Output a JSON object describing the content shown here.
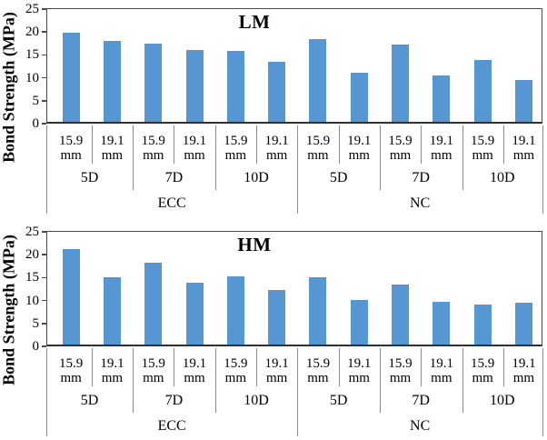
{
  "figure": {
    "background": "#ffffff",
    "colors": {
      "bar": "#5696D2",
      "axis": "#4a4a4a",
      "separator": "#8a8a8a",
      "text": "#000000"
    }
  },
  "chart_data": [
    {
      "type": "bar",
      "title": "LM",
      "ylabel": "Bond Strength (MPa)",
      "xlabel": "",
      "ylim": [
        0,
        25
      ],
      "yticks": [
        0,
        5,
        10,
        15,
        20,
        25
      ],
      "grid": false,
      "legend": null,
      "categories": {
        "bar_diameters": [
          "15.9 mm",
          "19.1 mm"
        ],
        "embedment_lengths": [
          "5D",
          "7D",
          "10D"
        ],
        "concrete_types": [
          "ECC",
          "NC"
        ]
      },
      "series": [
        {
          "name": "Bond Strength",
          "values": [
            19.9,
            18.0,
            17.5,
            16.1,
            15.9,
            13.5,
            18.5,
            11.1,
            17.3,
            10.6,
            13.8,
            9.6
          ]
        }
      ],
      "value_order_note": "ECC-5D-15.9, ECC-5D-19.1, ECC-7D-15.9, ECC-7D-19.1, ECC-10D-15.9, ECC-10D-19.1, NC-5D-15.9, NC-5D-19.1, NC-7D-15.9, NC-7D-19.1, NC-10D-15.9, NC-10D-19.1"
    },
    {
      "type": "bar",
      "title": "HM",
      "ylabel": "Bond Strength (MPa)",
      "xlabel": "",
      "ylim": [
        0,
        25
      ],
      "yticks": [
        0,
        5,
        10,
        15,
        20,
        25
      ],
      "grid": false,
      "legend": null,
      "categories": {
        "bar_diameters": [
          "15.9 mm",
          "19.1 mm"
        ],
        "embedment_lengths": [
          "5D",
          "7D",
          "10D"
        ],
        "concrete_types": [
          "ECC",
          "NC"
        ]
      },
      "series": [
        {
          "name": "Bond Strength",
          "values": [
            21.2,
            15.1,
            18.2,
            13.9,
            15.2,
            12.4,
            15.1,
            10.1,
            13.5,
            9.7,
            9.1,
            9.5
          ]
        }
      ],
      "value_order_note": "ECC-5D-15.9, ECC-5D-19.1, ECC-7D-15.9, ECC-7D-19.1, ECC-10D-15.9, ECC-10D-19.1, NC-5D-15.9, NC-5D-19.1, NC-7D-15.9, NC-7D-19.1, NC-10D-15.9, NC-10D-19.1"
    }
  ]
}
